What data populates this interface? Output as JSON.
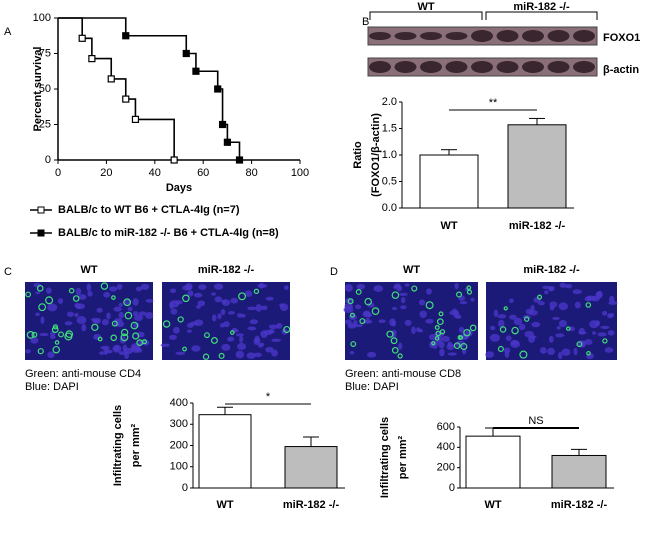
{
  "chart_data": [
    {
      "type": "survival",
      "panel": "A",
      "ylabel": "Percent survival",
      "xlabel": "Days",
      "xlim": [
        0,
        100
      ],
      "xticks": [
        0,
        20,
        40,
        60,
        80,
        100
      ],
      "ylim": [
        0,
        100
      ],
      "yticks": [
        0,
        25,
        50,
        75,
        100
      ],
      "series": [
        {
          "name": "BALB/c to WT B6 + CTLA-4Ig (n=7)",
          "color": "#000000",
          "filled": false,
          "x": [
            0,
            10,
            14,
            22,
            28,
            32,
            48
          ],
          "values": [
            100,
            85.7,
            71.4,
            57.1,
            42.9,
            28.6,
            0
          ]
        },
        {
          "name": "BALB/c to miR-182 -/- B6 + CTLA-4Ig (n=8)",
          "color": "#000000",
          "filled": true,
          "x": [
            0,
            28,
            53,
            57,
            66,
            68,
            70,
            75
          ],
          "values": [
            100,
            87.5,
            75,
            62.5,
            50,
            25,
            12.5,
            0
          ]
        }
      ]
    },
    {
      "type": "bar",
      "panel": "B",
      "blot_groups": [
        "WT",
        "miR-182 -/-"
      ],
      "blot_labels": [
        "FOXO1",
        "β-actin"
      ],
      "ylabel": [
        "Ratio",
        "(FOXO1/β-actin)"
      ],
      "categories": [
        "WT",
        "miR-182 -/-"
      ],
      "values": [
        1.0,
        1.57
      ],
      "errors": [
        0.1,
        0.12
      ],
      "colors": [
        "#ffffff",
        "#bdbdbd"
      ],
      "significance": "**",
      "ylim": [
        0,
        2
      ],
      "yticks": [
        {
          "value": 0,
          "label": "0.0"
        },
        {
          "value": 0.5,
          "label": "0.5"
        },
        {
          "value": 1,
          "label": "1.0"
        },
        {
          "value": 1.5,
          "label": "1.5"
        },
        {
          "value": 2,
          "label": "2.0"
        }
      ]
    },
    {
      "type": "bar",
      "panel": "C",
      "image_labels": [
        "WT",
        "miR-182 -/-"
      ],
      "stain_labels": [
        "Green: anti-mouse CD4",
        "Blue: DAPI"
      ],
      "ylabel": [
        "Infiltrating cells",
        "per mm²"
      ],
      "categories": [
        "WT",
        "miR-182 -/-"
      ],
      "values": [
        345,
        195
      ],
      "errors": [
        35,
        45
      ],
      "colors": [
        "#ffffff",
        "#bdbdbd"
      ],
      "significance": "*",
      "ylim": [
        0,
        400
      ],
      "yticks": [
        0,
        100,
        200,
        300,
        400
      ]
    },
    {
      "type": "bar",
      "panel": "D",
      "image_labels": [
        "WT",
        "miR-182 -/-"
      ],
      "stain_labels": [
        "Green: anti-mouse CD8",
        "Blue: DAPI"
      ],
      "ylabel": [
        "Infiltrating cells",
        "per mm²"
      ],
      "categories": [
        "WT",
        "miR-182 -/-"
      ],
      "values": [
        510,
        320
      ],
      "errors": [
        80,
        60
      ],
      "colors": [
        "#ffffff",
        "#bdbdbd"
      ],
      "significance": "NS",
      "ylim": [
        0,
        600
      ],
      "yticks": [
        0,
        200,
        400,
        600
      ]
    }
  ]
}
